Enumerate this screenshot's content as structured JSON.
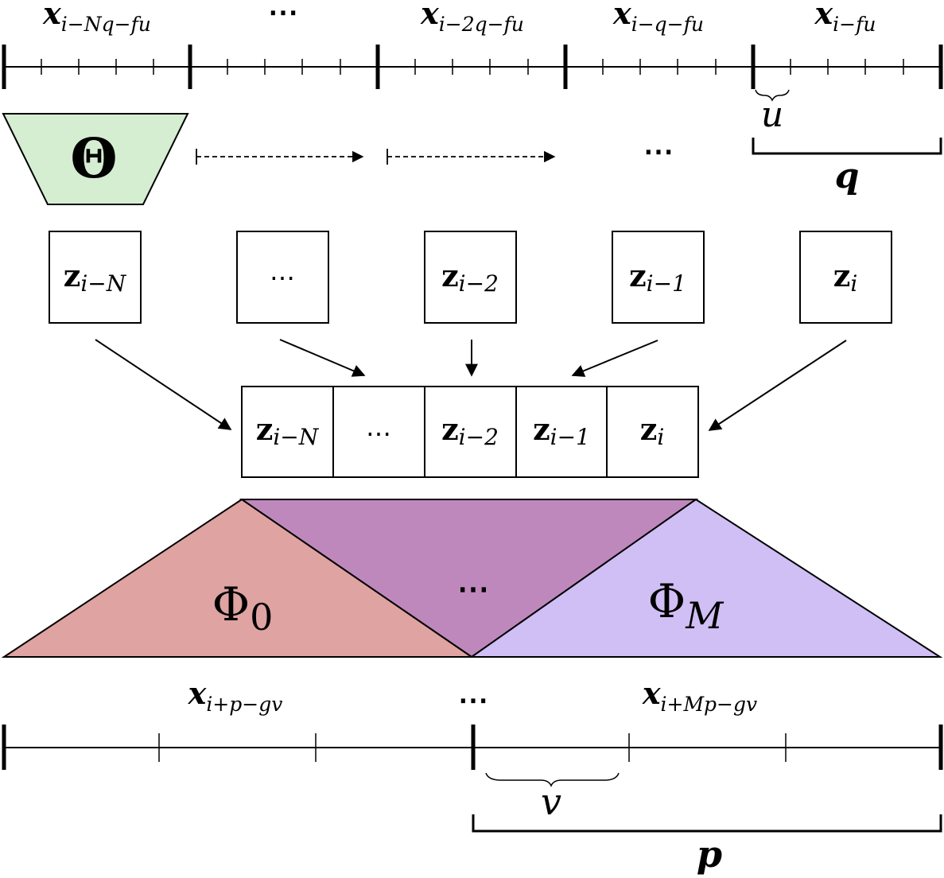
{
  "input_axis": {
    "labels": [
      {
        "base": "x",
        "sub": "i−Nq−fu"
      },
      {
        "text": "⋯"
      },
      {
        "base": "x",
        "sub": "i−2q−fu"
      },
      {
        "base": "x",
        "sub": "i−q−fu"
      },
      {
        "base": "x",
        "sub": "i−fu"
      }
    ],
    "u_label": "u",
    "q_label": "q"
  },
  "encoder": {
    "label": "Θ",
    "color": "#d5eed2"
  },
  "middle_dots": "⋯",
  "latents": [
    {
      "base": "z",
      "sub": "i−N"
    },
    {
      "text": "⋯"
    },
    {
      "base": "z",
      "sub": "i−2"
    },
    {
      "base": "z",
      "sub": "i−1"
    },
    {
      "base": "z",
      "sub": "i"
    }
  ],
  "stack": [
    {
      "base": "z",
      "sub": "i−N"
    },
    {
      "text": "⋯"
    },
    {
      "base": "z",
      "sub": "i−2"
    },
    {
      "base": "z",
      "sub": "i−1"
    },
    {
      "base": "z",
      "sub": "i"
    }
  ],
  "decoders": {
    "phi0": {
      "base": "Φ",
      "sub": "0",
      "color": "#dfa3a2"
    },
    "middle": {
      "text": "⋯",
      "color": "#bf88bd"
    },
    "phiM": {
      "base": "Φ",
      "sub": "M",
      "color": "#d0bff4"
    }
  },
  "output_axis": {
    "labels": [
      {
        "base": "x",
        "sub": "i+p−gv"
      },
      {
        "text": "⋯"
      },
      {
        "base": "x",
        "sub": "i+Mp−gv"
      }
    ],
    "v_label": "v",
    "p_label": "p"
  }
}
